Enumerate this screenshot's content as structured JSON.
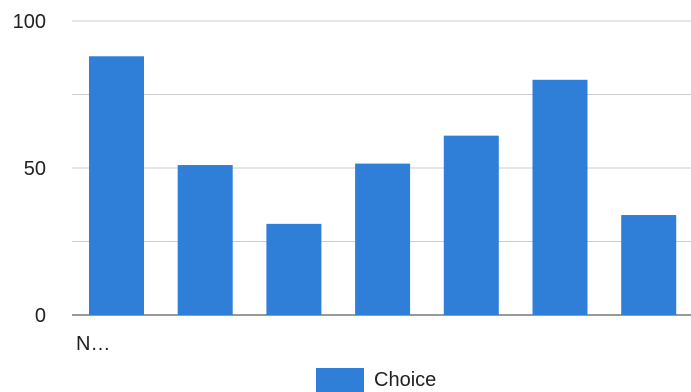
{
  "chart_data": {
    "type": "bar",
    "categories": [
      "N…",
      "",
      "",
      "",
      "",
      "",
      ""
    ],
    "series": [
      {
        "name": "Choice",
        "values": [
          88,
          51,
          31,
          51.5,
          61,
          80,
          34
        ],
        "color": "#2f7ed8"
      }
    ],
    "ylim": [
      0,
      100
    ],
    "yticks": [
      0,
      50,
      100
    ],
    "gridlines": [
      0,
      25,
      50,
      75,
      100
    ],
    "grid": true,
    "legend_position": "bottom",
    "title": "",
    "xlabel": "",
    "ylabel": ""
  }
}
